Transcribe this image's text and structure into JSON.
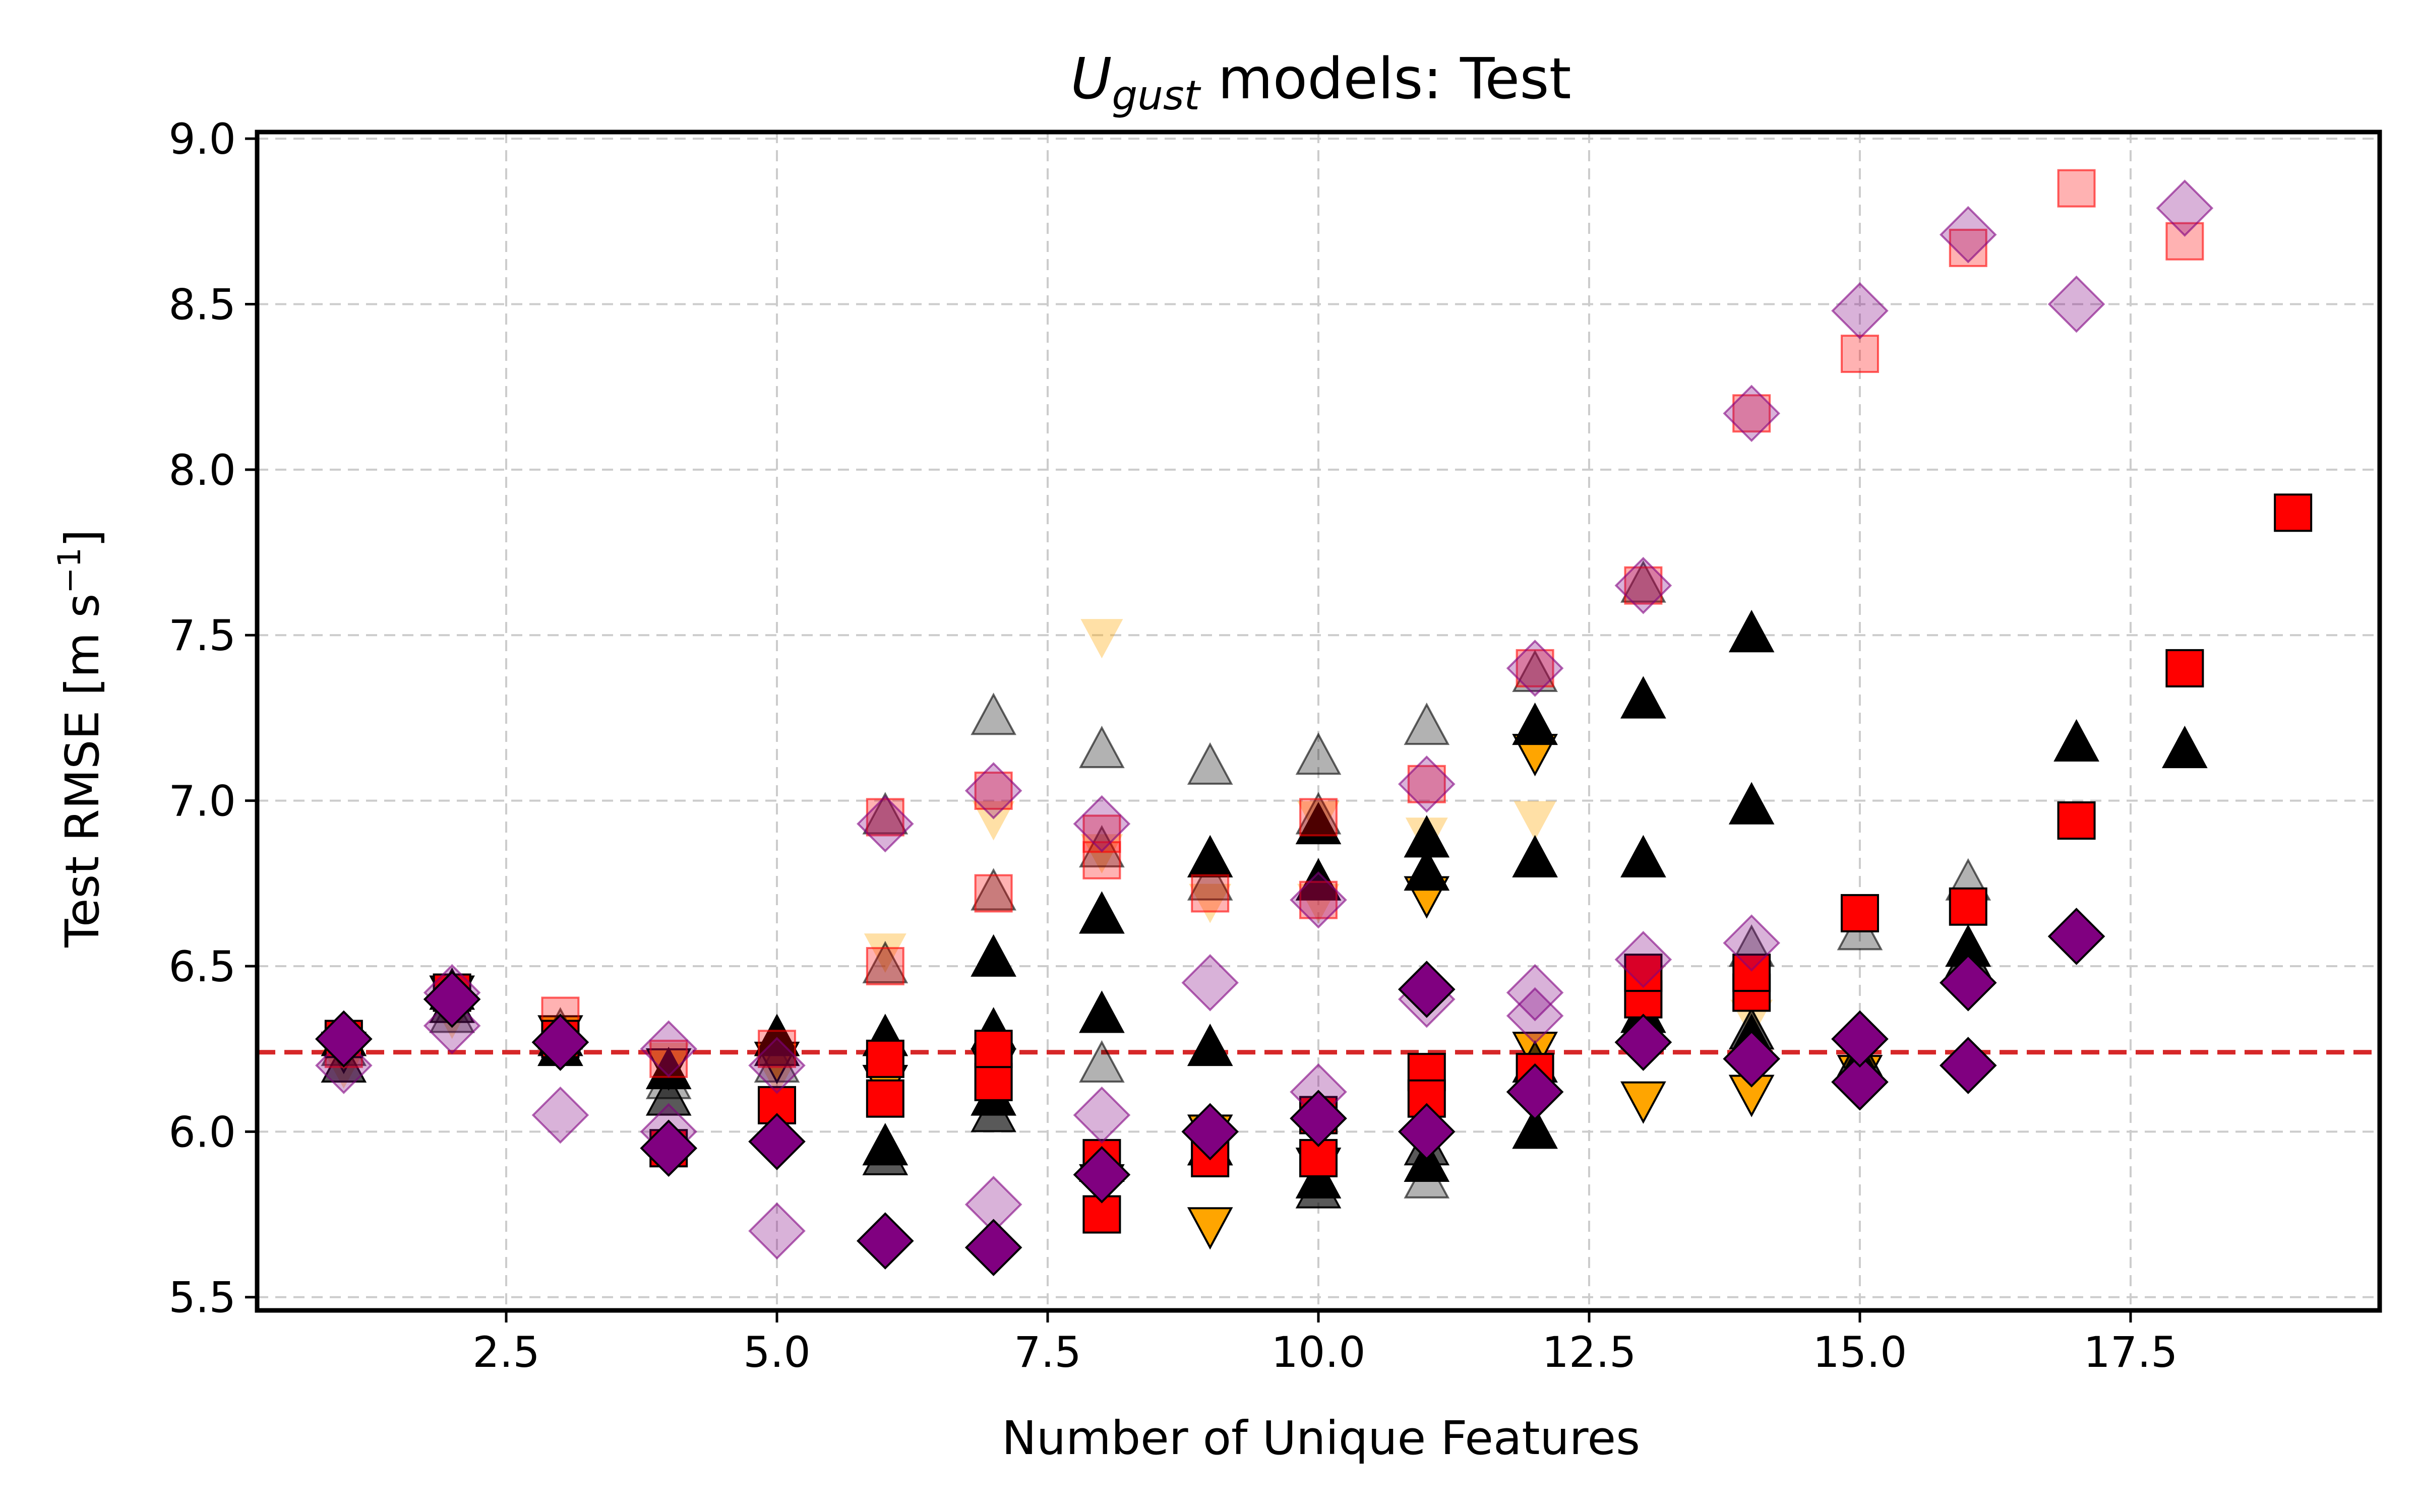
{
  "chart_data": {
    "type": "scatter",
    "title": {
      "symbol": "U",
      "subscript": "gust",
      "rest": " models: Test"
    },
    "xlabel": "Number of Unique Features",
    "ylabel": {
      "main": "Test RMSE [m s",
      "sup": "−1",
      "end": "]"
    },
    "xlim": [
      0.2,
      19.8
    ],
    "ylim": [
      5.46,
      9.02
    ],
    "xticks": [
      {
        "v": 2.5,
        "label": "2.5"
      },
      {
        "v": 5.0,
        "label": "5.0"
      },
      {
        "v": 7.5,
        "label": "7.5"
      },
      {
        "v": 10.0,
        "label": "10.0"
      },
      {
        "v": 12.5,
        "label": "12.5"
      },
      {
        "v": 15.0,
        "label": "15.0"
      },
      {
        "v": 17.5,
        "label": "17.5"
      }
    ],
    "yticks": [
      {
        "v": 5.5,
        "label": "5.5"
      },
      {
        "v": 6.0,
        "label": "6.0"
      },
      {
        "v": 6.5,
        "label": "6.5"
      },
      {
        "v": 7.0,
        "label": "7.0"
      },
      {
        "v": 7.5,
        "label": "7.5"
      },
      {
        "v": 8.0,
        "label": "8.0"
      },
      {
        "v": 8.5,
        "label": "8.5"
      },
      {
        "v": 9.0,
        "label": "9.0"
      }
    ],
    "grid": true,
    "reference_line": {
      "y": 6.24,
      "color": "#d62728",
      "style": "dashed"
    },
    "series": [
      {
        "marker": "triangle-down",
        "color": "#ffa500",
        "alpha": 0.35,
        "edge": false,
        "points": [
          [
            1,
            6.2
          ],
          [
            2,
            6.35
          ],
          [
            3,
            6.3
          ],
          [
            4,
            6.22
          ],
          [
            5,
            6.18
          ],
          [
            6,
            6.55
          ],
          [
            7,
            6.95
          ],
          [
            8,
            7.5
          ],
          [
            8,
            6.85
          ],
          [
            9,
            6.7
          ],
          [
            10,
            6.7
          ],
          [
            10,
            6.95
          ],
          [
            11,
            6.9
          ],
          [
            12,
            7.15
          ],
          [
            12,
            6.95
          ],
          [
            13,
            6.45
          ],
          [
            14,
            6.35
          ]
        ]
      },
      {
        "marker": "triangle-down",
        "color": "#ffa500",
        "alpha": 1.0,
        "edge": true,
        "points": [
          [
            1,
            6.25
          ],
          [
            2,
            6.42
          ],
          [
            3,
            6.3
          ],
          [
            4,
            6.2
          ],
          [
            5,
            6.22
          ],
          [
            6,
            6.15
          ],
          [
            7,
            6.2
          ],
          [
            8,
            5.85
          ],
          [
            9,
            5.72
          ],
          [
            9,
            6.0
          ],
          [
            10,
            5.9
          ],
          [
            11,
            6.72
          ],
          [
            12,
            7.15
          ],
          [
            12,
            6.25
          ],
          [
            13,
            6.1
          ],
          [
            14,
            6.12
          ],
          [
            15,
            6.18
          ]
        ]
      },
      {
        "marker": "triangle",
        "color": "#000000",
        "alpha": 0.3,
        "edge": true,
        "points": [
          [
            1,
            6.25
          ],
          [
            2,
            6.35
          ],
          [
            3,
            6.3
          ],
          [
            4,
            6.15
          ],
          [
            5,
            6.2
          ],
          [
            6,
            6.95
          ],
          [
            6,
            6.5
          ],
          [
            7,
            7.25
          ],
          [
            7,
            6.72
          ],
          [
            8,
            7.15
          ],
          [
            8,
            6.85
          ],
          [
            8,
            6.2
          ],
          [
            9,
            7.1
          ],
          [
            9,
            6.75
          ],
          [
            10,
            7.13
          ],
          [
            10,
            6.95
          ],
          [
            11,
            7.22
          ],
          [
            11,
            5.85
          ],
          [
            12,
            7.38
          ],
          [
            13,
            7.65
          ],
          [
            14,
            6.55
          ],
          [
            15,
            6.6
          ],
          [
            16,
            6.75
          ]
        ]
      },
      {
        "marker": "triangle",
        "color": "#000000",
        "alpha": 0.65,
        "edge": true,
        "points": [
          [
            1,
            6.2
          ],
          [
            2,
            6.38
          ],
          [
            3,
            6.28
          ],
          [
            4,
            6.1
          ],
          [
            5,
            6.25
          ],
          [
            6,
            5.92
          ],
          [
            7,
            6.05
          ],
          [
            8,
            5.9
          ],
          [
            9,
            5.95
          ],
          [
            10,
            5.82
          ],
          [
            11,
            5.95
          ],
          [
            12,
            6.2
          ],
          [
            13,
            6.3
          ],
          [
            14,
            6.3
          ],
          [
            15,
            6.22
          ],
          [
            16,
            6.52
          ]
        ]
      },
      {
        "marker": "triangle",
        "color": "#000000",
        "alpha": 1.0,
        "edge": true,
        "points": [
          [
            1,
            6.28
          ],
          [
            2,
            6.42
          ],
          [
            3,
            6.25
          ],
          [
            4,
            6.18
          ],
          [
            5,
            6.28
          ],
          [
            6,
            6.28
          ],
          [
            6,
            5.95
          ],
          [
            7,
            6.52
          ],
          [
            7,
            6.3
          ],
          [
            7,
            6.1
          ],
          [
            8,
            6.65
          ],
          [
            8,
            6.35
          ],
          [
            9,
            6.82
          ],
          [
            9,
            6.25
          ],
          [
            9,
            5.95
          ],
          [
            10,
            6.92
          ],
          [
            10,
            6.75
          ],
          [
            10,
            5.85
          ],
          [
            11,
            6.88
          ],
          [
            11,
            6.78
          ],
          [
            11,
            5.9
          ],
          [
            12,
            7.22
          ],
          [
            12,
            6.82
          ],
          [
            12,
            6.0
          ],
          [
            13,
            7.3
          ],
          [
            13,
            6.82
          ],
          [
            13,
            6.35
          ],
          [
            14,
            7.5
          ],
          [
            14,
            6.98
          ],
          [
            14,
            6.28
          ],
          [
            15,
            6.2
          ],
          [
            16,
            6.55
          ],
          [
            17,
            7.17
          ],
          [
            18,
            7.15
          ]
        ]
      },
      {
        "marker": "square",
        "color": "#ff0000",
        "alpha": 0.3,
        "edge": true,
        "points": [
          [
            1,
            6.25
          ],
          [
            2,
            6.42
          ],
          [
            3,
            6.35
          ],
          [
            4,
            6.22
          ],
          [
            5,
            6.25
          ],
          [
            6,
            6.5
          ],
          [
            6,
            6.95
          ],
          [
            7,
            7.03
          ],
          [
            7,
            6.72
          ],
          [
            8,
            6.9
          ],
          [
            8,
            6.82
          ],
          [
            9,
            6.72
          ],
          [
            10,
            6.7
          ],
          [
            10,
            6.95
          ],
          [
            11,
            7.05
          ],
          [
            12,
            7.4
          ],
          [
            13,
            7.65
          ],
          [
            14,
            8.17
          ],
          [
            15,
            8.35
          ],
          [
            16,
            8.67
          ],
          [
            17,
            8.85
          ],
          [
            18,
            8.69
          ]
        ]
      },
      {
        "marker": "square",
        "color": "#ff0000",
        "alpha": 1.0,
        "edge": true,
        "points": [
          [
            1,
            6.28
          ],
          [
            2,
            6.42
          ],
          [
            3,
            6.28
          ],
          [
            4,
            5.95
          ],
          [
            5,
            6.08
          ],
          [
            6,
            6.1
          ],
          [
            6,
            6.22
          ],
          [
            7,
            6.15
          ],
          [
            7,
            6.25
          ],
          [
            8,
            5.75
          ],
          [
            8,
            5.92
          ],
          [
            9,
            5.95
          ],
          [
            9,
            5.92
          ],
          [
            10,
            6.05
          ],
          [
            10,
            5.92
          ],
          [
            11,
            6.18
          ],
          [
            11,
            6.1
          ],
          [
            12,
            6.18
          ],
          [
            13,
            6.4
          ],
          [
            13,
            6.48
          ],
          [
            14,
            6.42
          ],
          [
            14,
            6.48
          ],
          [
            15,
            6.66
          ],
          [
            16,
            6.68
          ],
          [
            17,
            6.94
          ],
          [
            18,
            7.4
          ],
          [
            19,
            7.87
          ]
        ]
      },
      {
        "marker": "diamond",
        "color": "#800080",
        "alpha": 0.3,
        "edge": true,
        "points": [
          [
            1,
            6.2
          ],
          [
            2,
            6.42
          ],
          [
            2,
            6.32
          ],
          [
            3,
            6.05
          ],
          [
            4,
            6.25
          ],
          [
            4,
            6.0
          ],
          [
            5,
            5.7
          ],
          [
            5,
            6.2
          ],
          [
            6,
            6.93
          ],
          [
            7,
            7.03
          ],
          [
            7,
            5.78
          ],
          [
            8,
            6.93
          ],
          [
            8,
            6.05
          ],
          [
            9,
            6.45
          ],
          [
            10,
            6.12
          ],
          [
            10,
            6.7
          ],
          [
            11,
            7.05
          ],
          [
            11,
            6.4
          ],
          [
            12,
            7.4
          ],
          [
            12,
            6.42
          ],
          [
            12,
            6.35
          ],
          [
            13,
            7.65
          ],
          [
            13,
            6.52
          ],
          [
            14,
            8.17
          ],
          [
            14,
            6.57
          ],
          [
            15,
            8.48
          ],
          [
            16,
            8.71
          ],
          [
            17,
            8.5
          ],
          [
            18,
            8.79
          ]
        ]
      },
      {
        "marker": "diamond",
        "color": "#800080",
        "alpha": 1.0,
        "edge": true,
        "points": [
          [
            1,
            6.28
          ],
          [
            2,
            6.4
          ],
          [
            3,
            6.27
          ],
          [
            4,
            5.95
          ],
          [
            5,
            5.97
          ],
          [
            6,
            5.67
          ],
          [
            7,
            5.65
          ],
          [
            8,
            5.87
          ],
          [
            9,
            6.0
          ],
          [
            10,
            6.04
          ],
          [
            11,
            6.0
          ],
          [
            11,
            6.43
          ],
          [
            12,
            6.12
          ],
          [
            13,
            6.27
          ],
          [
            14,
            6.22
          ],
          [
            15,
            6.15
          ],
          [
            15,
            6.28
          ],
          [
            16,
            6.2
          ],
          [
            16,
            6.45
          ],
          [
            17,
            6.59
          ]
        ]
      }
    ]
  }
}
